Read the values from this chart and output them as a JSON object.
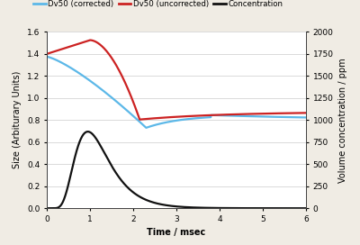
{
  "legend_labels": [
    "Dv50 (corrected)",
    "Dv50 (uncorrected)",
    "Concentration"
  ],
  "legend_colors": [
    "#5cb8e8",
    "#cc2222",
    "#111111"
  ],
  "xlabel": "Time / msec",
  "ylabel_left": "Size (Arbiturary Units)",
  "ylabel_right": "Volume concentration / ppm",
  "xlim": [
    0,
    6
  ],
  "ylim_left": [
    0,
    1.6
  ],
  "ylim_right": [
    0,
    2000
  ],
  "yticks_left": [
    0,
    0.2,
    0.4,
    0.6,
    0.8,
    1.0,
    1.2,
    1.4,
    1.6
  ],
  "yticks_right": [
    0,
    250,
    500,
    750,
    1000,
    1250,
    1500,
    1750,
    2000
  ],
  "xticks": [
    0,
    1,
    2,
    3,
    4,
    5,
    6
  ],
  "background_color": "#f0ece4",
  "plot_bg_color": "#ffffff",
  "grid_color": "#cccccc",
  "linewidth": 1.6
}
